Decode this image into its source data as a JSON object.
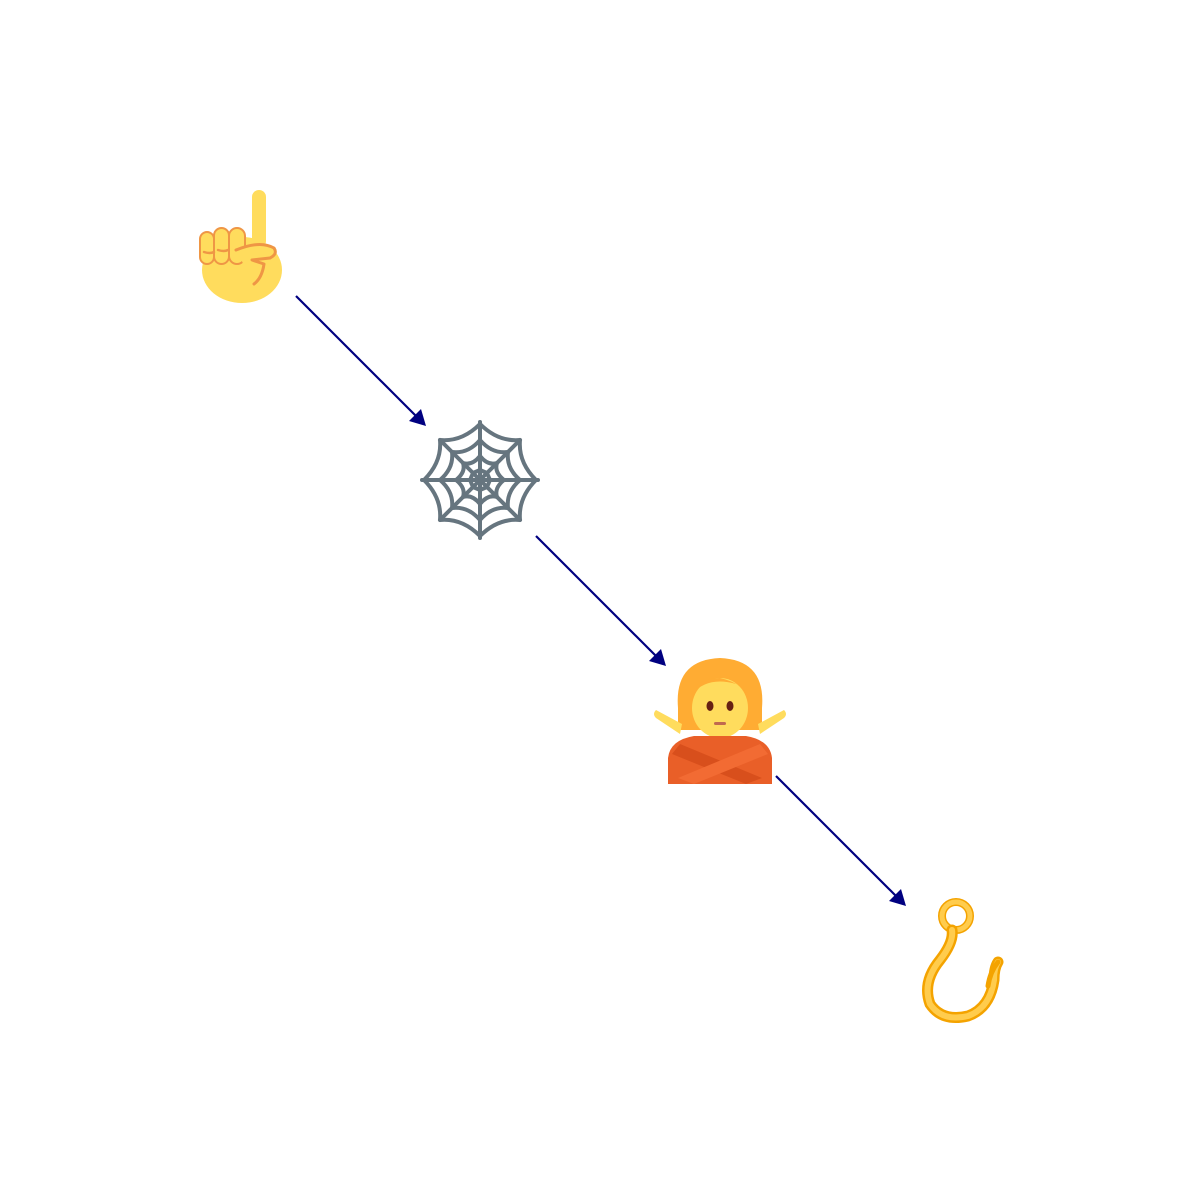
{
  "diagram": {
    "type": "flow",
    "direction": "diagonal-down-right",
    "edge_color": "#000080",
    "nodes": [
      {
        "id": "n1",
        "icon": "index-pointing-up-icon"
      },
      {
        "id": "n2",
        "icon": "spider-web-icon"
      },
      {
        "id": "n3",
        "icon": "person-gesturing-no-icon"
      },
      {
        "id": "n4",
        "icon": "hook-icon"
      }
    ],
    "edges": [
      {
        "from": "n1",
        "to": "n2"
      },
      {
        "from": "n2",
        "to": "n3"
      },
      {
        "from": "n3",
        "to": "n4"
      }
    ]
  }
}
